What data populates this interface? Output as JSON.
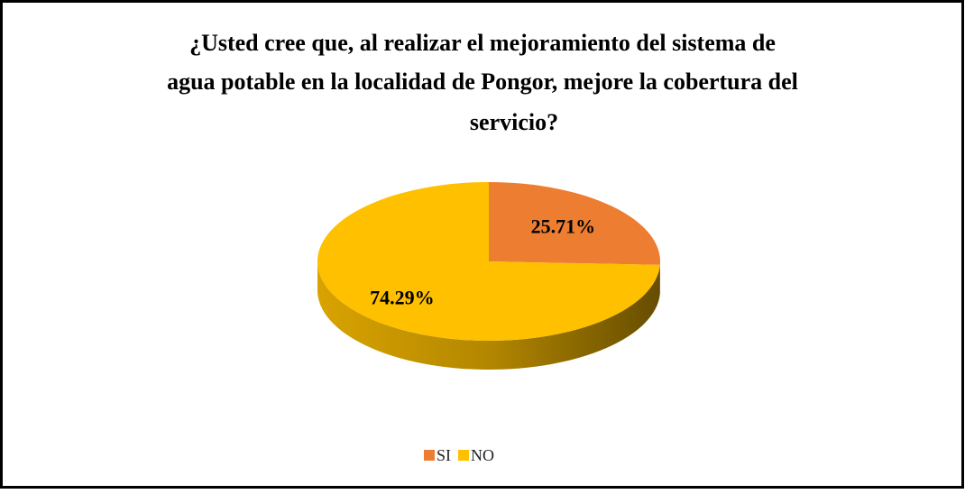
{
  "chart_data": {
    "type": "pie3d",
    "title": [
      "¿Usted cree que, al realizar el mejoramiento del sistema de",
      "agua potable en la localidad de Pongor, mejore la cobertura del",
      "servicio?"
    ],
    "categories": [
      "SI",
      "NO"
    ],
    "values": [
      25.71,
      74.29
    ],
    "value_labels": [
      "25.71%",
      "74.29%"
    ],
    "colors": [
      "#ed7d31",
      "#ffc000"
    ],
    "legend": "bottom"
  }
}
